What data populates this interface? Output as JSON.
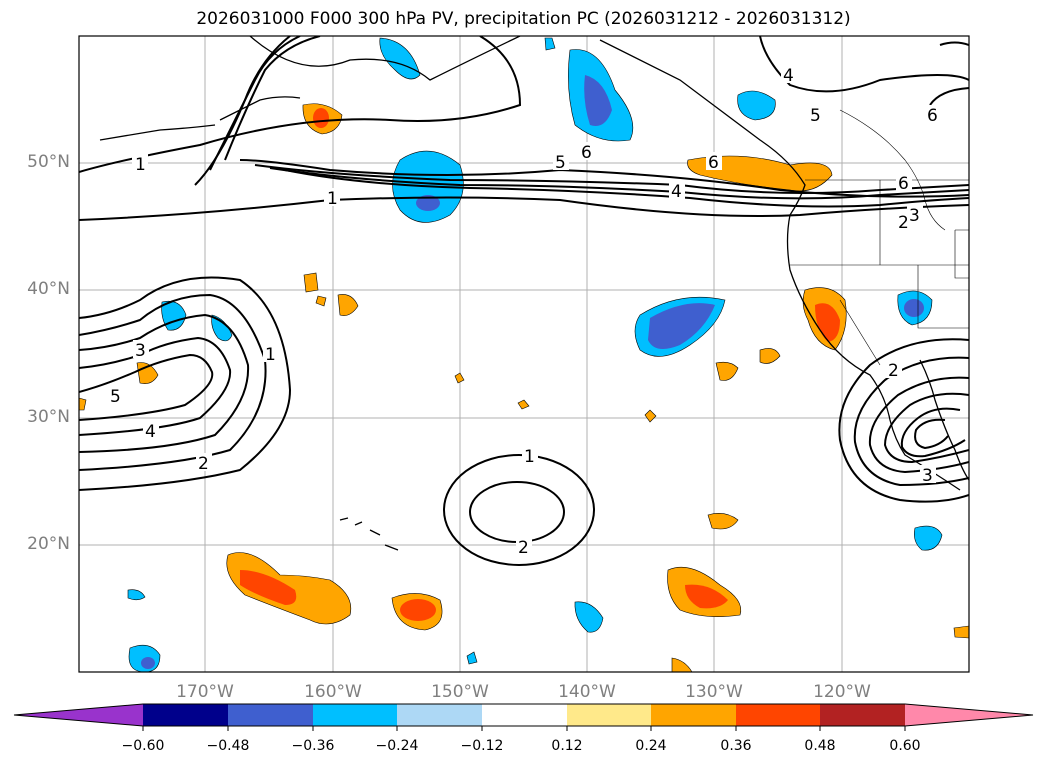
{
  "title": "2026031000 F000 300 hPa PV, precipitation PC (2026031212 - 2026031312)",
  "map": {
    "lat_labels": [
      "50°N",
      "40°N",
      "30°N",
      "20°N"
    ],
    "lon_labels": [
      "170°W",
      "160°W",
      "150°W",
      "140°W",
      "130°W",
      "120°W"
    ],
    "contour_labels": [
      "1",
      "2",
      "3",
      "4",
      "5",
      "6"
    ]
  },
  "colorbar": {
    "ticks": [
      "−0.60",
      "−0.48",
      "−0.36",
      "−0.24",
      "−0.12",
      "0.12",
      "0.24",
      "0.36",
      "0.48",
      "0.60"
    ],
    "colors": [
      "#9933cc",
      "#00008b",
      "#3f5fcf",
      "#00bfff",
      "#add8f5",
      "#ffffff",
      "#ffe98a",
      "#ffa500",
      "#ff4500",
      "#b22222",
      "#ff88aa"
    ]
  }
}
